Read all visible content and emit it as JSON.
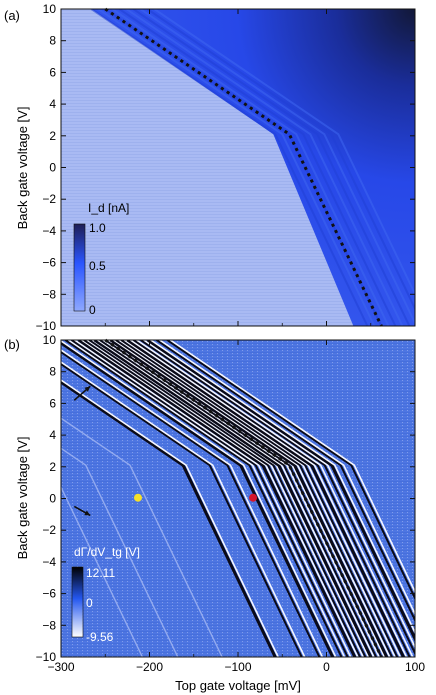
{
  "chart_data": [
    {
      "panel_label": "(a)",
      "type": "heatmap",
      "xlim": [
        -300,
        100
      ],
      "ylim": [
        -10,
        10
      ],
      "x_ticks": [
        -300,
        -200,
        -100,
        0,
        100
      ],
      "y_ticks": [
        10,
        8,
        6,
        4,
        2,
        0,
        -2,
        -4,
        -6,
        -8,
        -10
      ],
      "y_tick_labels": [
        "10",
        "8",
        "6",
        "4",
        "2",
        "0",
        "−2",
        "−4",
        "−6",
        "−8",
        "−10"
      ],
      "xlabel": "",
      "ylabel": "Back gate voltage [V]",
      "colorbar": {
        "label": "I_d [nA]",
        "ticks": [
          1.0,
          0.5,
          0
        ],
        "tick_labels": [
          "1.0",
          "0.5",
          "0"
        ],
        "colors": [
          "#1e1e55",
          "#2a55ff",
          "#8ea8ff"
        ]
      },
      "dashed_line": {
        "x": [
          -250,
          -42,
          62
        ],
        "y": [
          10,
          2.1,
          -10
        ]
      },
      "colors": {
        "background": "#a4b6f2",
        "bright": "#2246e4",
        "dark": "#131a3c"
      }
    },
    {
      "panel_label": "(b)",
      "type": "heatmap",
      "xlim": [
        -300,
        100
      ],
      "ylim": [
        -10,
        10
      ],
      "x_ticks": [
        -300,
        -200,
        -100,
        0,
        100
      ],
      "x_tick_labels": [
        "−300",
        "−200",
        "−100",
        "0",
        "100"
      ],
      "y_ticks": [
        10,
        8,
        6,
        4,
        2,
        0,
        -2,
        -4,
        -6,
        -8,
        -10
      ],
      "y_tick_labels": [
        "10",
        "8",
        "6",
        "4",
        "2",
        "0",
        "−2",
        "−4",
        "−6",
        "−8",
        "−10"
      ],
      "xlabel": "Top gate voltage [mV]",
      "ylabel": "Back gate voltage [V]",
      "colorbar": {
        "label": "dΓ/dV_tg [V]",
        "ticks": [
          12.11,
          0,
          -9.56
        ],
        "tick_labels": [
          "12.11",
          "0",
          "-9.56"
        ],
        "colors": [
          "#000000",
          "#2457ef",
          "#ffffff"
        ]
      },
      "dashed_line": {
        "x": [
          -250,
          -42,
          62
        ],
        "y": [
          10,
          2.1,
          -10
        ]
      },
      "markers": [
        {
          "x": -213,
          "y": 0.05,
          "color": "#f5e02a"
        },
        {
          "x": -83,
          "y": 0.05,
          "color": "#d4152c"
        }
      ],
      "arrows": [
        {
          "x": -285,
          "y": 6.2,
          "direction": "up-right"
        },
        {
          "x": -285,
          "y": -0.5,
          "direction": "down-right"
        }
      ],
      "colors": {
        "background": "#4c74e0"
      }
    }
  ]
}
